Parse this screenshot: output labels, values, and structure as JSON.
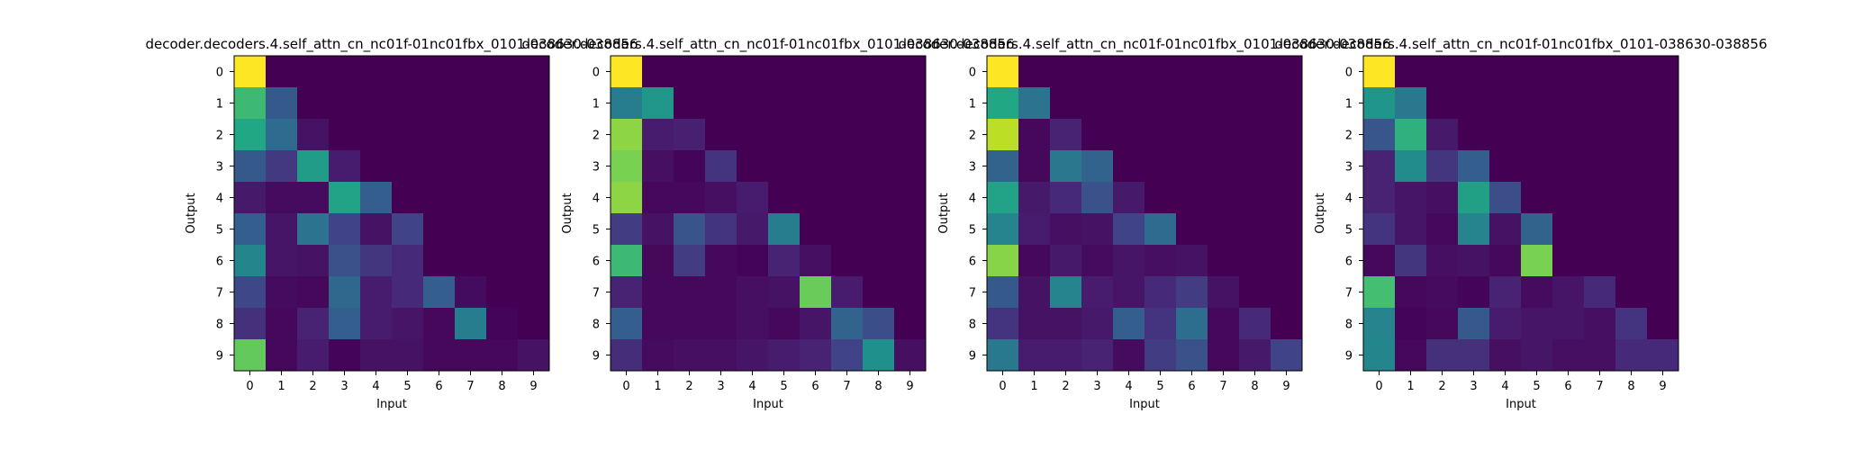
{
  "chart_data": [
    {
      "type": "heatmap",
      "title": "decoder.decoders.4.self_attn_cn_nc01f-01nc01fbx_0101-038630-038856",
      "xlabel": "Input",
      "ylabel": "Output",
      "x_ticks": [
        "0",
        "1",
        "2",
        "3",
        "4",
        "5",
        "6",
        "7",
        "8",
        "9"
      ],
      "y_ticks": [
        "0",
        "1",
        "2",
        "3",
        "4",
        "5",
        "6",
        "7",
        "8",
        "9"
      ],
      "colormap": "viridis",
      "value_range": [
        0,
        1
      ],
      "grid": false,
      "values": [
        [
          1.0,
          0,
          0,
          0,
          0,
          0,
          0,
          0,
          0,
          0
        ],
        [
          0.68,
          0.28,
          0,
          0,
          0,
          0,
          0,
          0,
          0,
          0
        ],
        [
          0.6,
          0.35,
          0.05,
          0,
          0,
          0,
          0,
          0,
          0,
          0
        ],
        [
          0.28,
          0.17,
          0.55,
          0.08,
          0,
          0,
          0,
          0,
          0,
          0
        ],
        [
          0.07,
          0.03,
          0.03,
          0.58,
          0.3,
          0,
          0,
          0,
          0,
          0
        ],
        [
          0.3,
          0.06,
          0.38,
          0.2,
          0.05,
          0.2,
          0,
          0,
          0,
          0
        ],
        [
          0.46,
          0.06,
          0.05,
          0.25,
          0.16,
          0.12,
          0,
          0,
          0,
          0
        ],
        [
          0.22,
          0.03,
          0.02,
          0.34,
          0.08,
          0.12,
          0.3,
          0.03,
          0,
          0
        ],
        [
          0.14,
          0.02,
          0.1,
          0.3,
          0.08,
          0.06,
          0.02,
          0.42,
          0.01,
          0
        ],
        [
          0.76,
          0.02,
          0.08,
          0.01,
          0.05,
          0.05,
          0.02,
          0.02,
          0.02,
          0.05
        ]
      ]
    },
    {
      "type": "heatmap",
      "title": "decoder.decoders.4.self_attn_cn_nc01f-01nc01fbx_0101-038630-038856",
      "xlabel": "Input",
      "ylabel": "Output",
      "x_ticks": [
        "0",
        "1",
        "2",
        "3",
        "4",
        "5",
        "6",
        "7",
        "8",
        "9"
      ],
      "y_ticks": [
        "0",
        "1",
        "2",
        "3",
        "4",
        "5",
        "6",
        "7",
        "8",
        "9"
      ],
      "colormap": "viridis",
      "value_range": [
        0,
        1
      ],
      "grid": false,
      "values": [
        [
          1.0,
          0,
          0,
          0,
          0,
          0,
          0,
          0,
          0,
          0
        ],
        [
          0.42,
          0.53,
          0,
          0,
          0,
          0,
          0,
          0,
          0,
          0
        ],
        [
          0.83,
          0.08,
          0.09,
          0,
          0,
          0,
          0,
          0,
          0,
          0
        ],
        [
          0.8,
          0.04,
          0.01,
          0.15,
          0,
          0,
          0,
          0,
          0,
          0
        ],
        [
          0.83,
          0.02,
          0.02,
          0.04,
          0.08,
          0,
          0,
          0,
          0,
          0
        ],
        [
          0.18,
          0.05,
          0.26,
          0.15,
          0.07,
          0.42,
          0,
          0,
          0,
          0
        ],
        [
          0.68,
          0.02,
          0.18,
          0.02,
          0.01,
          0.1,
          0.04,
          0,
          0,
          0
        ],
        [
          0.1,
          0.02,
          0.02,
          0.02,
          0.04,
          0.05,
          0.77,
          0.08,
          0,
          0
        ],
        [
          0.3,
          0.02,
          0.02,
          0.02,
          0.04,
          0.02,
          0.06,
          0.32,
          0.24,
          0
        ],
        [
          0.13,
          0.03,
          0.04,
          0.04,
          0.06,
          0.08,
          0.1,
          0.2,
          0.5,
          0.04
        ]
      ]
    },
    {
      "type": "heatmap",
      "title": "decoder.decoders.4.self_attn_cn_nc01f-01nc01fbx_0101-038630-038856",
      "xlabel": "Input",
      "ylabel": "Output",
      "x_ticks": [
        "0",
        "1",
        "2",
        "3",
        "4",
        "5",
        "6",
        "7",
        "8",
        "9"
      ],
      "y_ticks": [
        "0",
        "1",
        "2",
        "3",
        "4",
        "5",
        "6",
        "7",
        "8",
        "9"
      ],
      "colormap": "viridis",
      "value_range": [
        0,
        1
      ],
      "grid": false,
      "values": [
        [
          1.0,
          0,
          0,
          0,
          0,
          0,
          0,
          0,
          0,
          0
        ],
        [
          0.6,
          0.38,
          0,
          0,
          0,
          0,
          0,
          0,
          0,
          0
        ],
        [
          0.9,
          0.02,
          0.1,
          0,
          0,
          0,
          0,
          0,
          0,
          0
        ],
        [
          0.32,
          0.02,
          0.4,
          0.32,
          0,
          0,
          0,
          0,
          0,
          0
        ],
        [
          0.58,
          0.07,
          0.12,
          0.25,
          0.07,
          0,
          0,
          0,
          0,
          0
        ],
        [
          0.45,
          0.08,
          0.04,
          0.05,
          0.2,
          0.35,
          0,
          0,
          0,
          0
        ],
        [
          0.82,
          0.02,
          0.07,
          0.03,
          0.06,
          0.04,
          0.05,
          0,
          0,
          0
        ],
        [
          0.28,
          0.05,
          0.45,
          0.08,
          0.06,
          0.12,
          0.18,
          0.05,
          0,
          0
        ],
        [
          0.15,
          0.05,
          0.05,
          0.07,
          0.3,
          0.15,
          0.36,
          0.02,
          0.12,
          0
        ],
        [
          0.4,
          0.08,
          0.08,
          0.1,
          0.03,
          0.18,
          0.25,
          0.02,
          0.07,
          0.2
        ]
      ]
    },
    {
      "type": "heatmap",
      "title": "decoder.decoders.4.self_attn_cn_nc01f-01nc01fbx_0101-038630-038856",
      "xlabel": "Input",
      "ylabel": "Output",
      "x_ticks": [
        "0",
        "1",
        "2",
        "3",
        "4",
        "5",
        "6",
        "7",
        "8",
        "9"
      ],
      "y_ticks": [
        "0",
        "1",
        "2",
        "3",
        "4",
        "5",
        "6",
        "7",
        "8",
        "9"
      ],
      "colormap": "viridis",
      "value_range": [
        0,
        1
      ],
      "grid": false,
      "values": [
        [
          1.0,
          0,
          0,
          0,
          0,
          0,
          0,
          0,
          0,
          0
        ],
        [
          0.52,
          0.4,
          0,
          0,
          0,
          0,
          0,
          0,
          0,
          0
        ],
        [
          0.27,
          0.64,
          0.07,
          0,
          0,
          0,
          0,
          0,
          0,
          0
        ],
        [
          0.1,
          0.48,
          0.16,
          0.3,
          0,
          0,
          0,
          0,
          0,
          0
        ],
        [
          0.1,
          0.06,
          0.04,
          0.57,
          0.24,
          0,
          0,
          0,
          0,
          0
        ],
        [
          0.15,
          0.06,
          0.02,
          0.45,
          0.05,
          0.32,
          0,
          0,
          0,
          0
        ],
        [
          0.02,
          0.16,
          0.04,
          0.05,
          0.02,
          0.8,
          0,
          0,
          0,
          0
        ],
        [
          0.7,
          0.02,
          0.03,
          0.01,
          0.1,
          0.03,
          0.06,
          0.12,
          0,
          0
        ],
        [
          0.45,
          0.01,
          0.02,
          0.28,
          0.08,
          0.06,
          0.06,
          0.04,
          0.15,
          0
        ],
        [
          0.46,
          0.02,
          0.14,
          0.14,
          0.04,
          0.06,
          0.04,
          0.04,
          0.12,
          0.12
        ]
      ]
    }
  ]
}
